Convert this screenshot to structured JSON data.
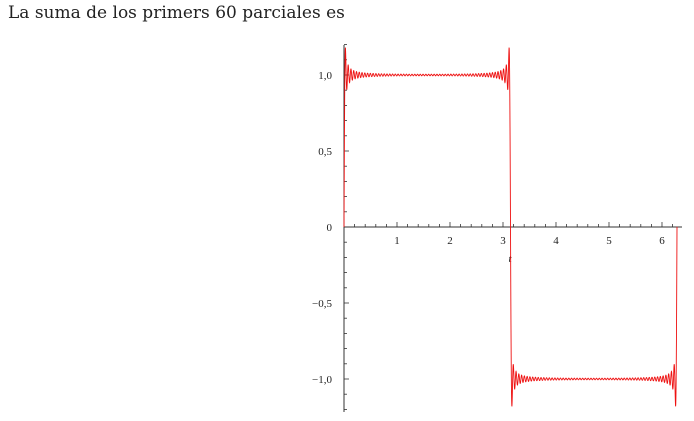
{
  "caption": "La suma de los primers 60 parciales es",
  "chart_data": {
    "type": "line",
    "title": "",
    "xlabel": "t",
    "ylabel": "",
    "xlim": [
      0,
      6.2832
    ],
    "ylim": [
      -1.2,
      1.2
    ],
    "x_ticks": [
      {
        "value": 1,
        "label": "1"
      },
      {
        "value": 2,
        "label": "2"
      },
      {
        "value": 3,
        "label": "3"
      },
      {
        "value": 4,
        "label": "4"
      },
      {
        "value": 5,
        "label": "5"
      },
      {
        "value": 6,
        "label": "6"
      }
    ],
    "y_ticks": [
      {
        "value": 1.0,
        "label": "1,0"
      },
      {
        "value": 0.5,
        "label": "0,5"
      },
      {
        "value": 0,
        "label": "0"
      },
      {
        "value": -0.5,
        "label": "−0,5"
      },
      {
        "value": -1.0,
        "label": "−1,0"
      }
    ],
    "grid": false,
    "series": [
      {
        "function": "partial Fourier sum of square wave: (4/pi) * sum_{k=1..60} sin((2k-1) t)/(2k-1)",
        "color": "#ee1111",
        "sample_x": [
          0,
          0.02,
          0.05,
          0.3,
          0.8,
          1.57,
          2.4,
          2.9,
          3.12,
          3.1416,
          3.17,
          3.4,
          4.0,
          4.71,
          5.5,
          6.0,
          6.25,
          6.2832
        ],
        "sample_y": [
          0,
          0.94,
          1.15,
          1.01,
          1.0,
          1.0,
          1.0,
          1.01,
          1.05,
          0,
          -1.14,
          -0.99,
          -1.0,
          -1.0,
          -1.0,
          -1.01,
          -1.12,
          0
        ]
      }
    ]
  }
}
